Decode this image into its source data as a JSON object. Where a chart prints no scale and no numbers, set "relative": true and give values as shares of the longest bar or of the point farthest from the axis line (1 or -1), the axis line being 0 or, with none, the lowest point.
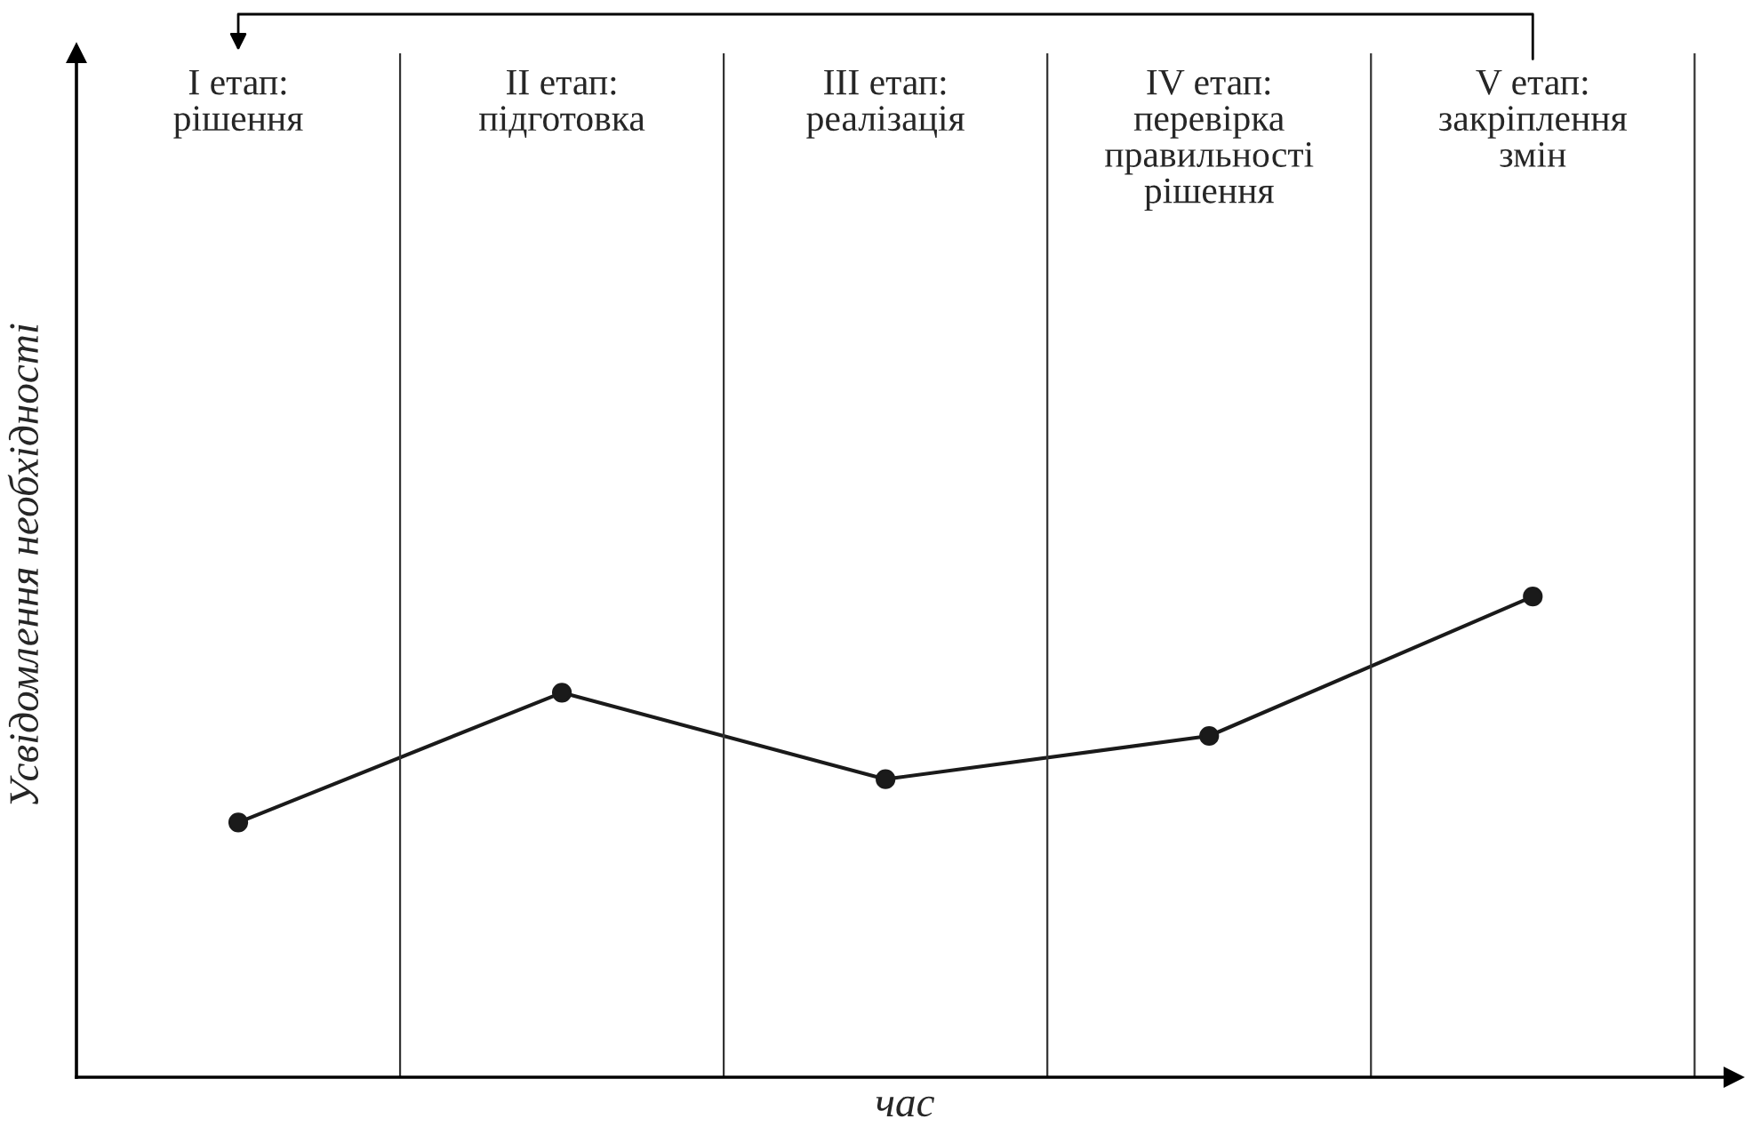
{
  "chart_data": {
    "type": "line",
    "relative": true,
    "categories": [
      "I етап:\nрішення",
      "II етап:\nпідготовка",
      "III етап:\nреалізація",
      "IV етап:\nперевірка\nправильності\nрішення",
      "V етап:\nзакріплення\nзмін"
    ],
    "series": [
      {
        "color": "#1a1a1a",
        "values": [
          0.53,
          0.8,
          0.62,
          0.71,
          1.0
        ]
      }
    ],
    "xlabel": "час",
    "ylabel": "Усвідомлення необхідності",
    "marker": "circle",
    "line_style": "solid"
  }
}
